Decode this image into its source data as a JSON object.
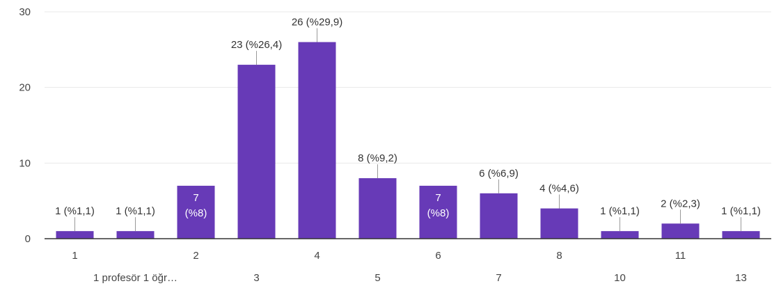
{
  "chart_data": {
    "type": "bar",
    "categories": [
      "1",
      "1 profesör 1 öğr…",
      "2",
      "3",
      "4",
      "5",
      "6",
      "7",
      "8",
      "10",
      "11",
      "13"
    ],
    "values": [
      1,
      1,
      7,
      23,
      26,
      8,
      7,
      6,
      4,
      1,
      2,
      1
    ],
    "data_labels": [
      "1 (%1,1)",
      "1 (%1,1)",
      "7 (%8)",
      "23 (%26,4)",
      "26 (%29,9)",
      "8 (%9,2)",
      "7 (%8)",
      "6 (%6,9)",
      "4 (%4,6)",
      "1 (%1,1)",
      "2 (%2,3)",
      "1 (%1,1)"
    ],
    "title": "",
    "xlabel": "",
    "ylabel": "",
    "ylim": [
      0,
      30
    ],
    "yticks": [
      "0",
      "10",
      "20",
      "30"
    ],
    "grid": true,
    "legend": "none",
    "bar_color": "#673ab7"
  }
}
